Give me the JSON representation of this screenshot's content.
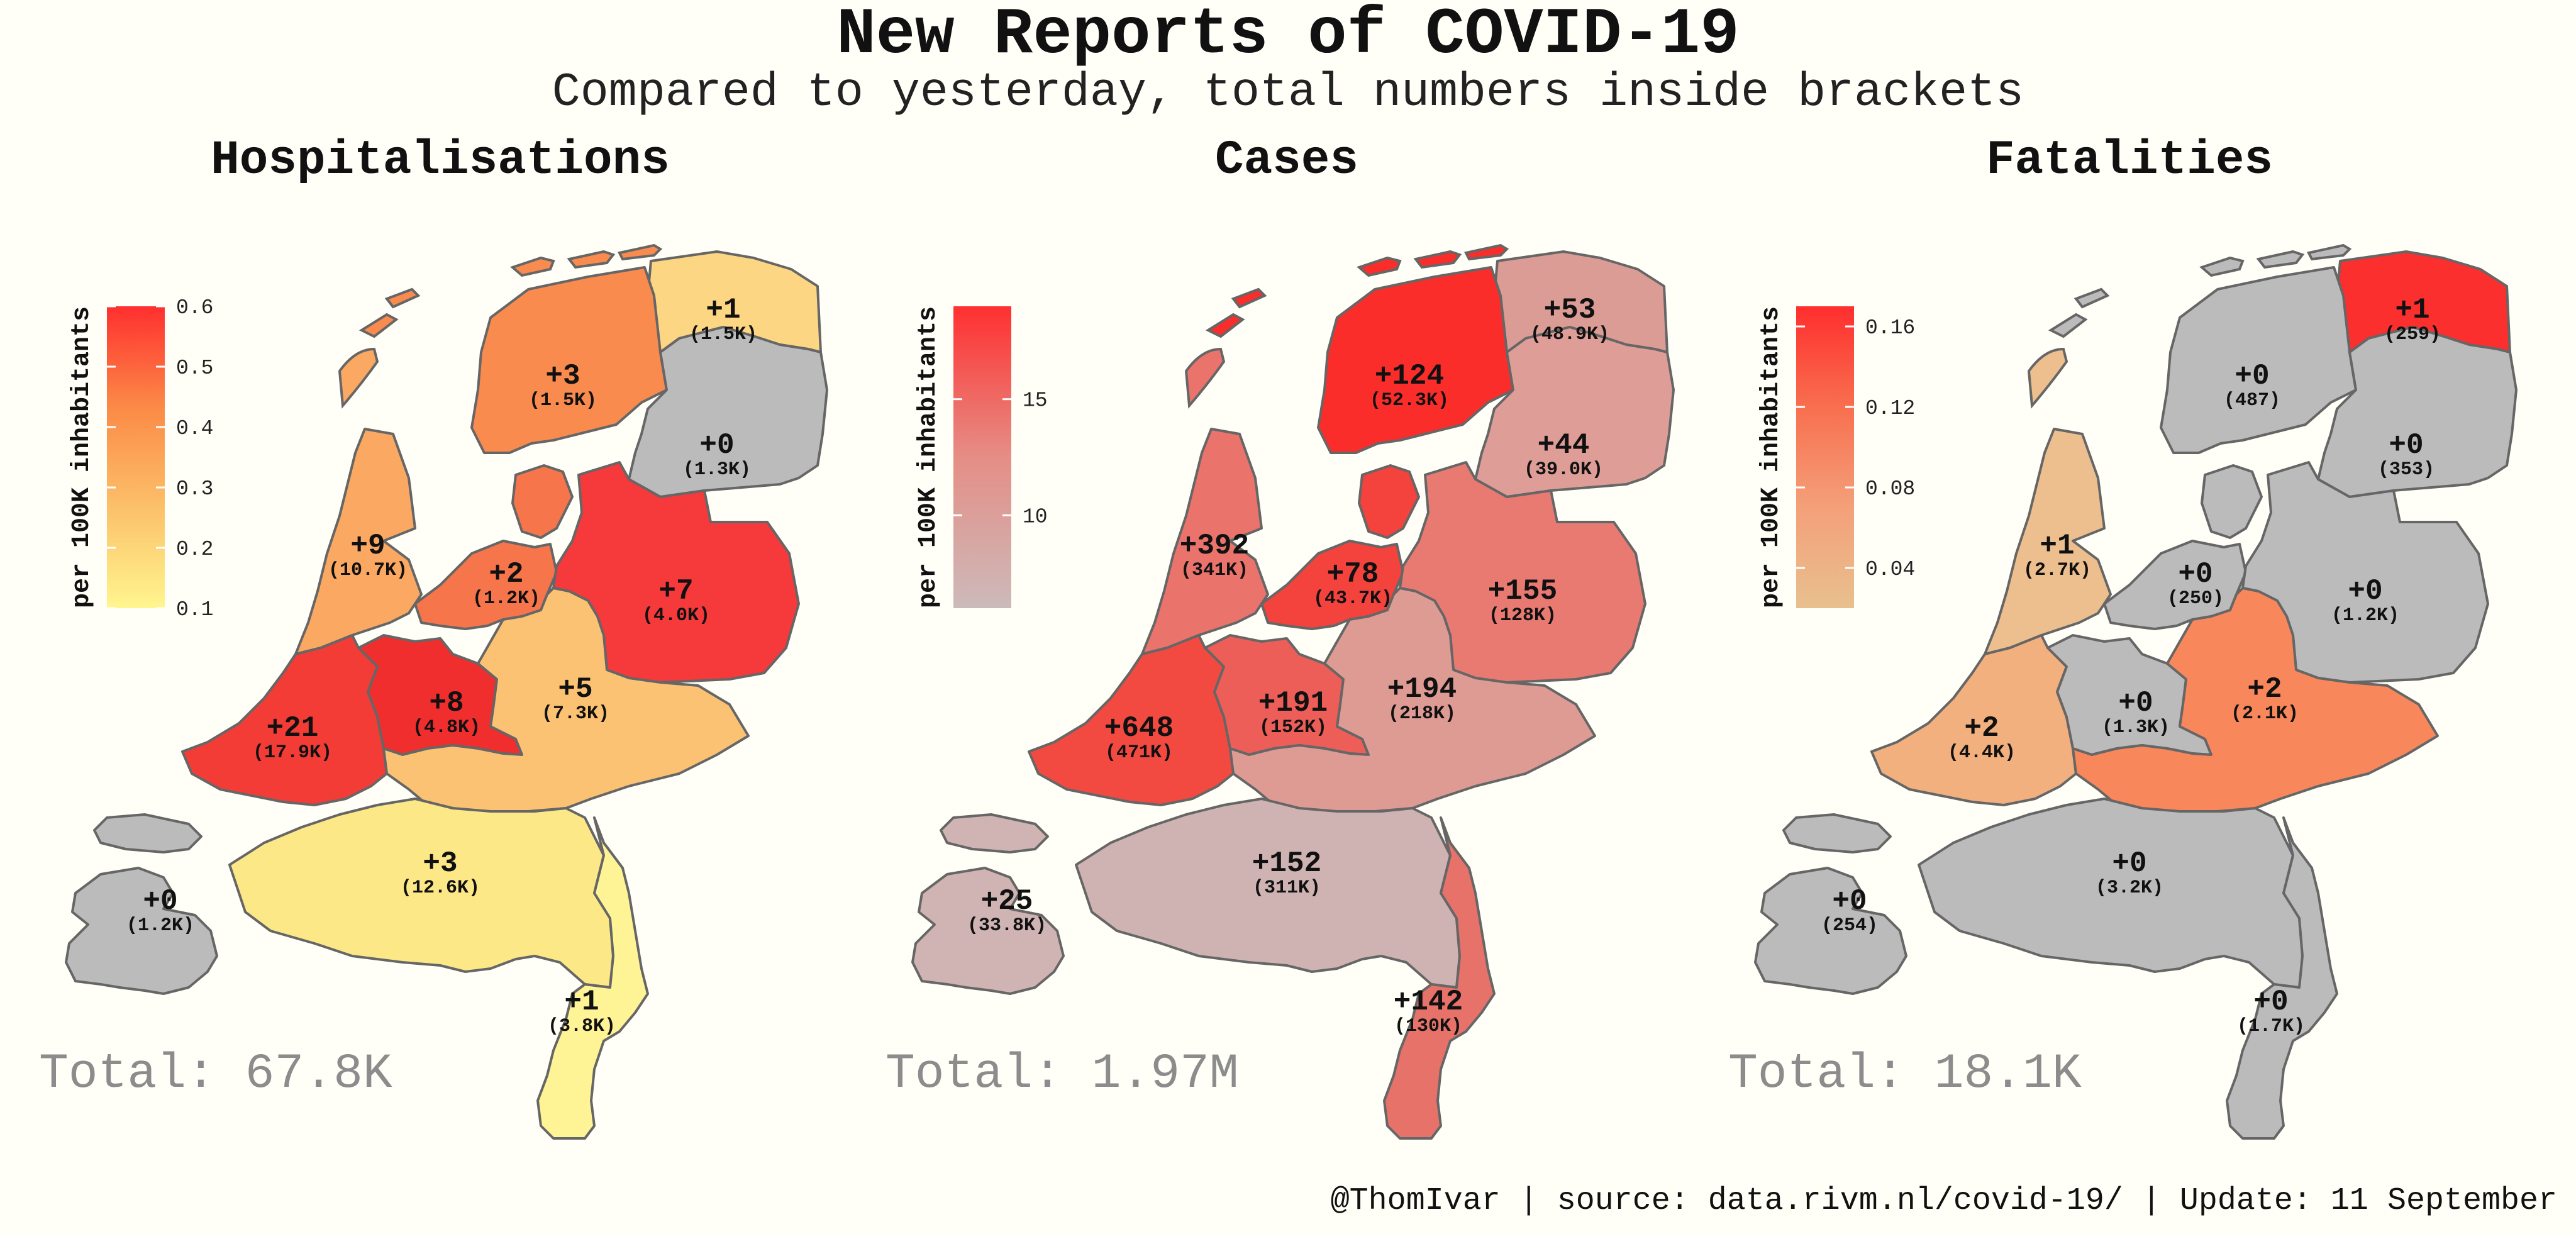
{
  "header": {
    "title": "New Reports of COVID-19",
    "subtitle": "Compared to yesterday, total numbers inside brackets"
  },
  "footer": "@ThomIvar | source: data.rivm.nl/covid-19/ | Update: 11 September",
  "colors": {
    "background": "#fffff8",
    "no_change": "#bbbbbb",
    "border": "#666666",
    "total_text": "#8c8c8c"
  },
  "regions": [
    "Groningen",
    "Friesland",
    "Drenthe",
    "Noord-Holland",
    "Flevoland",
    "Overijssel",
    "Zuid-Holland",
    "Utrecht",
    "Gelderland",
    "Zeeland",
    "Noord-Brabant",
    "Limburg"
  ],
  "chart_data": [
    {
      "type": "choropleth",
      "title": "Hospitalisations",
      "legend_title": "per 100K inhabitants",
      "legend_ticks": [
        "0.6",
        "0.5",
        "0.4",
        "0.3",
        "0.2",
        "0.1"
      ],
      "legend_range": [
        0.1,
        0.6
      ],
      "legend_colors": [
        "#fff68f",
        "#fcc06a",
        "#fb8a47",
        "#ff2f2f"
      ],
      "total": "Total: 67.8K",
      "labels": [
        {
          "region": "Groningen",
          "delta": "+1",
          "total": "(1.5K)"
        },
        {
          "region": "Friesland",
          "delta": "+3",
          "total": "(1.5K)"
        },
        {
          "region": "Drenthe",
          "delta": "+0",
          "total": "(1.3K)"
        },
        {
          "region": "Noord-Holland",
          "delta": "+9",
          "total": "(10.7K)"
        },
        {
          "region": "Flevoland",
          "delta": "+2",
          "total": "(1.2K)"
        },
        {
          "region": "Overijssel",
          "delta": "+7",
          "total": "(4.0K)"
        },
        {
          "region": "Zuid-Holland",
          "delta": "+21",
          "total": "(17.9K)"
        },
        {
          "region": "Utrecht",
          "delta": "+8",
          "total": "(4.8K)"
        },
        {
          "region": "Gelderland",
          "delta": "+5",
          "total": "(7.3K)"
        },
        {
          "region": "Zeeland",
          "delta": "+0",
          "total": "(1.2K)"
        },
        {
          "region": "Noord-Brabant",
          "delta": "+3",
          "total": "(12.6K)"
        },
        {
          "region": "Limburg",
          "delta": "+1",
          "total": "(3.8K)"
        }
      ],
      "fills": [
        "#fcd682",
        "#f98b4f",
        "#bbbbbb",
        "#faa862",
        "#f6754b",
        "#f6393a",
        "#f43c37",
        "#f02e2e",
        "#fbc273",
        "#bbbbbb",
        "#fde888",
        "#fef496"
      ]
    },
    {
      "type": "choropleth",
      "title": "Cases",
      "legend_title": "per 100K inhabitants",
      "legend_ticks": [
        "15",
        "10"
      ],
      "legend_range": [
        6,
        19
      ],
      "legend_colors": [
        "#ccbaba",
        "#e58e86",
        "#ff3030"
      ],
      "total": "Total: 1.97M",
      "labels": [
        {
          "region": "Groningen",
          "delta": "+53",
          "total": "(48.9K)"
        },
        {
          "region": "Friesland",
          "delta": "+124",
          "total": "(52.3K)"
        },
        {
          "region": "Drenthe",
          "delta": "+44",
          "total": "(39.0K)"
        },
        {
          "region": "Noord-Holland",
          "delta": "+392",
          "total": "(341K)"
        },
        {
          "region": "Flevoland",
          "delta": "+78",
          "total": "(43.7K)"
        },
        {
          "region": "Overijssel",
          "delta": "+155",
          "total": "(128K)"
        },
        {
          "region": "Zuid-Holland",
          "delta": "+648",
          "total": "(471K)"
        },
        {
          "region": "Utrecht",
          "delta": "+191",
          "total": "(152K)"
        },
        {
          "region": "Gelderland",
          "delta": "+194",
          "total": "(218K)"
        },
        {
          "region": "Zeeland",
          "delta": "+25",
          "total": "(33.8K)"
        },
        {
          "region": "Noord-Brabant",
          "delta": "+152",
          "total": "(311K)"
        },
        {
          "region": "Limburg",
          "delta": "+142",
          "total": "(130K)"
        }
      ],
      "fills": [
        "#dc9c96",
        "#fb2d2b",
        "#de9d97",
        "#ea736c",
        "#f4423d",
        "#e87a72",
        "#f24a40",
        "#ec5e57",
        "#de9b94",
        "#d0b3b3",
        "#cfb3b2",
        "#e6726a"
      ]
    },
    {
      "type": "choropleth",
      "title": "Fatalities",
      "legend_title": "per 100K inhabitants",
      "legend_ticks": [
        "0.16",
        "0.12",
        "0.08",
        "0.04"
      ],
      "legend_range": [
        0.02,
        0.17
      ],
      "legend_colors": [
        "#e8c08e",
        "#f4a07a",
        "#f86f4f",
        "#ff2e2e"
      ],
      "total": "Total: 18.1K",
      "labels": [
        {
          "region": "Groningen",
          "delta": "+1",
          "total": "(259)"
        },
        {
          "region": "Friesland",
          "delta": "+0",
          "total": "(487)"
        },
        {
          "region": "Drenthe",
          "delta": "+0",
          "total": "(353)"
        },
        {
          "region": "Noord-Holland",
          "delta": "+1",
          "total": "(2.7K)"
        },
        {
          "region": "Flevoland",
          "delta": "+0",
          "total": "(250)"
        },
        {
          "region": "Overijssel",
          "delta": "+0",
          "total": "(1.2K)"
        },
        {
          "region": "Zuid-Holland",
          "delta": "+2",
          "total": "(4.4K)"
        },
        {
          "region": "Utrecht",
          "delta": "+0",
          "total": "(1.3K)"
        },
        {
          "region": "Gelderland",
          "delta": "+2",
          "total": "(2.1K)"
        },
        {
          "region": "Zeeland",
          "delta": "+0",
          "total": "(254)"
        },
        {
          "region": "Noord-Brabant",
          "delta": "+0",
          "total": "(3.2K)"
        },
        {
          "region": "Limburg",
          "delta": "+0",
          "total": "(1.7K)"
        }
      ],
      "fills": [
        "#fb2f2d",
        "#bbbbbb",
        "#bbbbbb",
        "#eebf8e",
        "#bbbbbb",
        "#bbbbbb",
        "#f1b07e",
        "#bbbbbb",
        "#f8875b",
        "#bbbbbb",
        "#bbbbbb",
        "#bbbbbb"
      ]
    }
  ]
}
